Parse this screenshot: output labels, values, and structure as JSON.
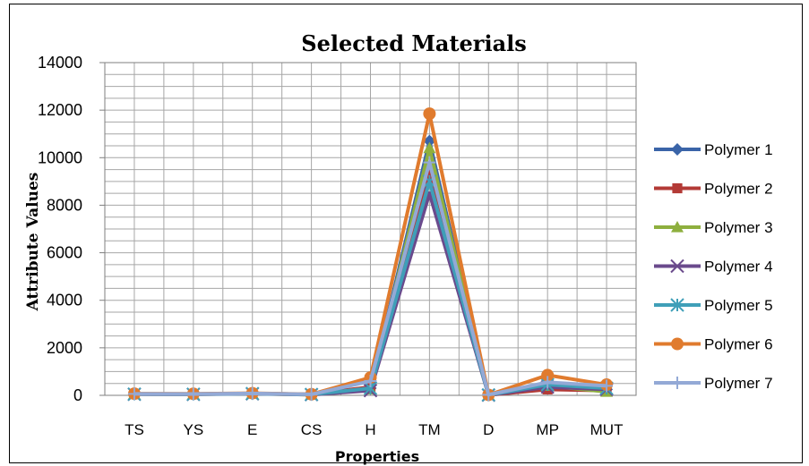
{
  "chart_data": {
    "type": "line",
    "title": "Selected Materials",
    "xlabel": "Properties",
    "ylabel": "Attribute Values",
    "ylim": [
      0,
      14000
    ],
    "yticks": [
      "0",
      "2000",
      "4000",
      "6000",
      "8000",
      "10000",
      "12000",
      "14000"
    ],
    "categories": [
      "TS",
      "YS",
      "E",
      "CS",
      "H",
      "TM",
      "D",
      "MP",
      "MUT"
    ],
    "grid": true,
    "legend_position": "right",
    "series": [
      {
        "name": "Polymer 1",
        "color": "#3A64A8",
        "marker": "diamond",
        "values": [
          60,
          55,
          80,
          40,
          300,
          10700,
          20,
          300,
          250
        ]
      },
      {
        "name": "Polymer 2",
        "color": "#B33A36",
        "marker": "square",
        "values": [
          55,
          50,
          75,
          35,
          350,
          9500,
          15,
          250,
          200
        ]
      },
      {
        "name": "Polymer 3",
        "color": "#8EAF3E",
        "marker": "triangle",
        "values": [
          50,
          45,
          70,
          30,
          250,
          10400,
          15,
          400,
          150
        ]
      },
      {
        "name": "Polymer 4",
        "color": "#6A4A8C",
        "marker": "x",
        "values": [
          45,
          40,
          65,
          30,
          200,
          8500,
          10,
          350,
          250
        ]
      },
      {
        "name": "Polymer 5",
        "color": "#3F9FB8",
        "marker": "star",
        "values": [
          50,
          45,
          70,
          35,
          300,
          9000,
          15,
          450,
          300
        ]
      },
      {
        "name": "Polymer 6",
        "color": "#E07B2E",
        "marker": "circle",
        "values": [
          70,
          65,
          90,
          45,
          750,
          11850,
          20,
          850,
          450
        ]
      },
      {
        "name": "Polymer 7",
        "color": "#93A9D6",
        "marker": "plus",
        "values": [
          60,
          55,
          80,
          40,
          600,
          9800,
          25,
          550,
          400
        ]
      }
    ]
  }
}
